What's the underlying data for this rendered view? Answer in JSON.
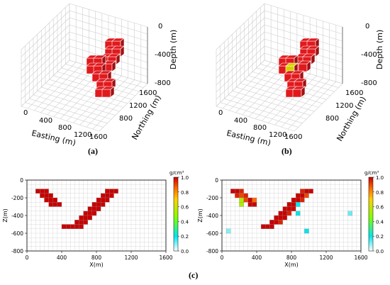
{
  "captions": [
    "(a)",
    "(b)",
    "(c)"
  ],
  "colors": {
    "block": "#e0191d",
    "grid": "#cfcfcf",
    "colormap": [
      "#ffffff",
      "#00e5ee",
      "#7fff00",
      "#ffd000",
      "#ff6a00",
      "#c80000"
    ]
  },
  "views3d": [
    {
      "id": "a",
      "xlabel": "Easting (m)",
      "ylabel": "Northing (m)",
      "zlabel": "Depth (m)",
      "xticks": [
        "0",
        "400",
        "800",
        "1200",
        "1600"
      ],
      "yticks": [
        "1600",
        "1200",
        "800"
      ],
      "zticks": [
        "0",
        "-400",
        "-800"
      ]
    },
    {
      "id": "b",
      "xlabel": "Easting (m)",
      "ylabel": "Northing (m)",
      "zlabel": "Depth (m)",
      "xticks": [
        "0",
        "400",
        "800",
        "1200",
        "1600"
      ],
      "yticks": [
        "1600",
        "1200",
        "800"
      ],
      "zticks": [
        "0",
        "-400",
        "-800"
      ]
    }
  ],
  "chart_data": [
    {
      "type": "heatmap",
      "panel": "c-left",
      "xlabel": "X(m)",
      "ylabel": "Z(m)",
      "xlim": [
        0,
        1600
      ],
      "ylim": [
        -800,
        0
      ],
      "xticks": [
        "0",
        "400",
        "800",
        "1200",
        "1600"
      ],
      "yticks": [
        "0",
        "-200",
        "-400",
        "-600",
        "-800"
      ],
      "colorbar_unit": "g/cm³",
      "colorbar_ticks": [
        "1.0",
        "0.8",
        "0.6",
        "0.4",
        "0.2",
        "0.0"
      ],
      "cell_size_m": [
        50,
        50
      ],
      "cells": [
        {
          "x": 100,
          "z": -100,
          "v": 1
        },
        {
          "x": 150,
          "z": -100,
          "v": 1
        },
        {
          "x": 200,
          "z": -100,
          "v": 1
        },
        {
          "x": 150,
          "z": -150,
          "v": 1
        },
        {
          "x": 200,
          "z": -150,
          "v": 1
        },
        {
          "x": 250,
          "z": -150,
          "v": 1
        },
        {
          "x": 200,
          "z": -200,
          "v": 1
        },
        {
          "x": 250,
          "z": -200,
          "v": 1
        },
        {
          "x": 300,
          "z": -200,
          "v": 1
        },
        {
          "x": 250,
          "z": -250,
          "v": 1
        },
        {
          "x": 300,
          "z": -250,
          "v": 1
        },
        {
          "x": 350,
          "z": -250,
          "v": 1
        },
        {
          "x": 900,
          "z": -100,
          "v": 1
        },
        {
          "x": 950,
          "z": -100,
          "v": 1
        },
        {
          "x": 1000,
          "z": -100,
          "v": 1
        },
        {
          "x": 850,
          "z": -150,
          "v": 1
        },
        {
          "x": 900,
          "z": -150,
          "v": 1
        },
        {
          "x": 950,
          "z": -150,
          "v": 1
        },
        {
          "x": 800,
          "z": -200,
          "v": 1
        },
        {
          "x": 850,
          "z": -200,
          "v": 1
        },
        {
          "x": 900,
          "z": -200,
          "v": 1
        },
        {
          "x": 750,
          "z": -250,
          "v": 1
        },
        {
          "x": 800,
          "z": -250,
          "v": 1
        },
        {
          "x": 850,
          "z": -250,
          "v": 1
        },
        {
          "x": 700,
          "z": -300,
          "v": 1
        },
        {
          "x": 750,
          "z": -300,
          "v": 1
        },
        {
          "x": 800,
          "z": -300,
          "v": 1
        },
        {
          "x": 650,
          "z": -350,
          "v": 1
        },
        {
          "x": 700,
          "z": -350,
          "v": 1
        },
        {
          "x": 750,
          "z": -350,
          "v": 1
        },
        {
          "x": 600,
          "z": -400,
          "v": 1
        },
        {
          "x": 650,
          "z": -400,
          "v": 1
        },
        {
          "x": 700,
          "z": -400,
          "v": 1
        },
        {
          "x": 550,
          "z": -450,
          "v": 1
        },
        {
          "x": 600,
          "z": -450,
          "v": 1
        },
        {
          "x": 650,
          "z": -450,
          "v": 1
        },
        {
          "x": 400,
          "z": -500,
          "v": 1
        },
        {
          "x": 450,
          "z": -500,
          "v": 1
        },
        {
          "x": 500,
          "z": -500,
          "v": 1
        },
        {
          "x": 550,
          "z": -500,
          "v": 1
        },
        {
          "x": 600,
          "z": -500,
          "v": 1
        }
      ]
    },
    {
      "type": "heatmap",
      "panel": "c-right",
      "xlabel": "X(m)",
      "ylabel": "Z(m)",
      "xlim": [
        0,
        1600
      ],
      "ylim": [
        -800,
        0
      ],
      "xticks": [
        "0",
        "400",
        "800",
        "1200",
        "1600"
      ],
      "yticks": [
        "0",
        "-200",
        "-400",
        "-600",
        "-800"
      ],
      "colorbar_unit": "g/cm³",
      "colorbar_ticks": [
        "1.0",
        "0.8",
        "0.6",
        "0.4",
        "0.2",
        "0.0"
      ],
      "cell_size_m": [
        50,
        50
      ],
      "cells": [
        {
          "x": 100,
          "z": -100,
          "v": 1
        },
        {
          "x": 150,
          "z": -100,
          "v": 1
        },
        {
          "x": 200,
          "z": -100,
          "v": 0.95
        },
        {
          "x": 150,
          "z": -150,
          "v": 0.95
        },
        {
          "x": 200,
          "z": -150,
          "v": 0.9
        },
        {
          "x": 250,
          "z": -150,
          "v": 0.95
        },
        {
          "x": 200,
          "z": -200,
          "v": 0.55
        },
        {
          "x": 250,
          "z": -200,
          "v": 0.9
        },
        {
          "x": 300,
          "z": -200,
          "v": 1
        },
        {
          "x": 350,
          "z": -200,
          "v": 0.85
        },
        {
          "x": 200,
          "z": -250,
          "v": 0.55
        },
        {
          "x": 300,
          "z": -250,
          "v": 1
        },
        {
          "x": 350,
          "z": -250,
          "v": 1
        },
        {
          "x": 900,
          "z": -100,
          "v": 0.95
        },
        {
          "x": 950,
          "z": -100,
          "v": 1
        },
        {
          "x": 1000,
          "z": -100,
          "v": 1
        },
        {
          "x": 850,
          "z": -150,
          "v": 1
        },
        {
          "x": 900,
          "z": -150,
          "v": 1
        },
        {
          "x": 950,
          "z": -150,
          "v": 0.9
        },
        {
          "x": 800,
          "z": -200,
          "v": 1
        },
        {
          "x": 850,
          "z": -200,
          "v": 1
        },
        {
          "x": 900,
          "z": -200,
          "v": 0.95
        },
        {
          "x": 750,
          "z": -250,
          "v": 1
        },
        {
          "x": 800,
          "z": -250,
          "v": 1
        },
        {
          "x": 850,
          "z": -250,
          "v": 0.2
        },
        {
          "x": 700,
          "z": -300,
          "v": 1
        },
        {
          "x": 750,
          "z": -300,
          "v": 1
        },
        {
          "x": 800,
          "z": -300,
          "v": 1
        },
        {
          "x": 650,
          "z": -350,
          "v": 1
        },
        {
          "x": 700,
          "z": -350,
          "v": 1
        },
        {
          "x": 750,
          "z": -350,
          "v": 0.95
        },
        {
          "x": 850,
          "z": -350,
          "v": 0.2
        },
        {
          "x": 600,
          "z": -400,
          "v": 1
        },
        {
          "x": 650,
          "z": -400,
          "v": 1
        },
        {
          "x": 700,
          "z": -400,
          "v": 1
        },
        {
          "x": 550,
          "z": -450,
          "v": 1
        },
        {
          "x": 600,
          "z": -450,
          "v": 1
        },
        {
          "x": 650,
          "z": -450,
          "v": 0.95
        },
        {
          "x": 450,
          "z": -500,
          "v": 1
        },
        {
          "x": 500,
          "z": -500,
          "v": 1
        },
        {
          "x": 550,
          "z": -500,
          "v": 1
        },
        {
          "x": 950,
          "z": -550,
          "v": 0.2
        },
        {
          "x": 1450,
          "z": -350,
          "v": 0.12
        },
        {
          "x": 50,
          "z": -550,
          "v": 0.1
        }
      ]
    }
  ]
}
